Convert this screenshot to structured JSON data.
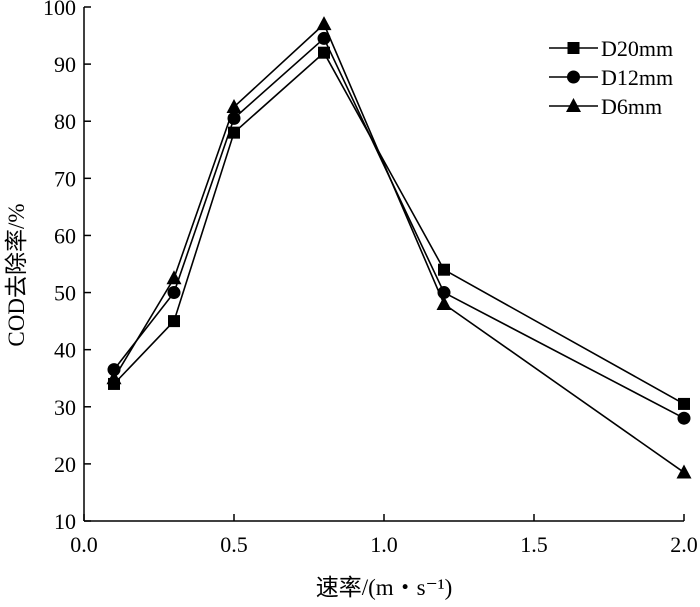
{
  "chart_data": {
    "type": "line",
    "xlabel": "速率/(m・s⁻¹)",
    "ylabel": "COD去除率/%",
    "xlim": [
      0.0,
      2.0
    ],
    "ylim": [
      10,
      100
    ],
    "x_ticks": [
      "0.0",
      "0.5",
      "1.0",
      "1.5",
      "2.0"
    ],
    "y_ticks": [
      "10",
      "20",
      "30",
      "40",
      "50",
      "60",
      "70",
      "80",
      "90",
      "100"
    ],
    "grid": false,
    "legend_position": "top-right",
    "x": [
      0.1,
      0.3,
      0.5,
      0.8,
      1.2,
      2.0
    ],
    "series": [
      {
        "name": "D20mm",
        "marker": "square",
        "values": [
          34,
          45,
          78,
          92,
          54,
          30.5
        ]
      },
      {
        "name": "D12mm",
        "marker": "circle",
        "values": [
          36.5,
          50,
          80.5,
          94.5,
          50,
          28
        ]
      },
      {
        "name": "D6mm",
        "marker": "triangle",
        "values": [
          35,
          52.5,
          82.5,
          97,
          48,
          18.5
        ]
      }
    ]
  }
}
